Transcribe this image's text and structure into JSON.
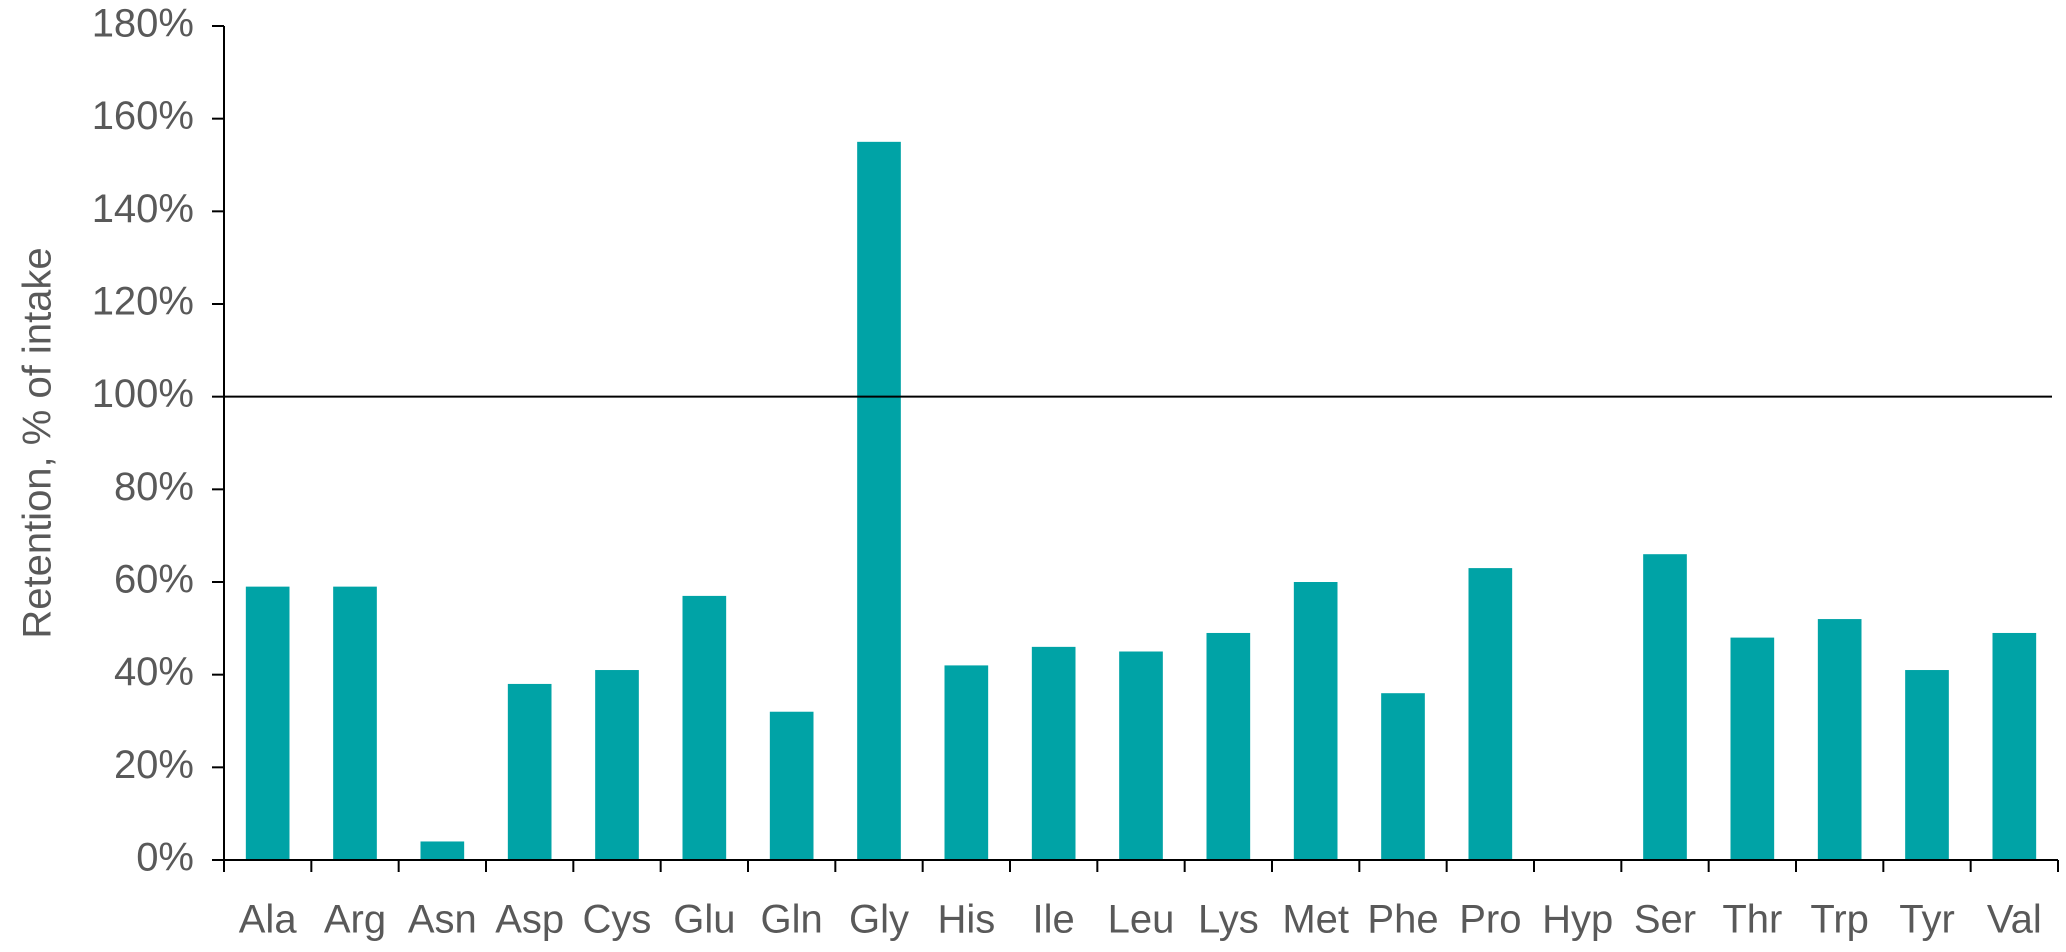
{
  "chart_data": {
    "type": "bar",
    "y_label": "Retention, % of intake",
    "categories": [
      "Ala",
      "Arg",
      "Asn",
      "Asp",
      "Cys",
      "Glu",
      "Gln",
      "Gly",
      "His",
      "Ile",
      "Leu",
      "Lys",
      "Met",
      "Phe",
      "Pro",
      "Hyp",
      "Ser",
      "Thr",
      "Trp",
      "Tyr",
      "Val"
    ],
    "values": [
      59,
      59,
      4,
      38,
      41,
      57,
      32,
      155,
      42,
      46,
      45,
      49,
      60,
      36,
      63,
      null,
      66,
      48,
      52,
      41,
      49
    ],
    "color": "#00a3a6",
    "ylim": [
      0,
      180
    ],
    "yticks": [
      {
        "value": 0,
        "label": "0%"
      },
      {
        "value": 20,
        "label": "20%"
      },
      {
        "value": 40,
        "label": "40%"
      },
      {
        "value": 60,
        "label": "60%"
      },
      {
        "value": 80,
        "label": "80%"
      },
      {
        "value": 100,
        "label": "100%"
      },
      {
        "value": 120,
        "label": "120%"
      },
      {
        "value": 140,
        "label": "140%"
      },
      {
        "value": 160,
        "label": "160%"
      },
      {
        "value": 180,
        "label": "180%"
      }
    ],
    "reference_line": 100,
    "grid": false
  }
}
